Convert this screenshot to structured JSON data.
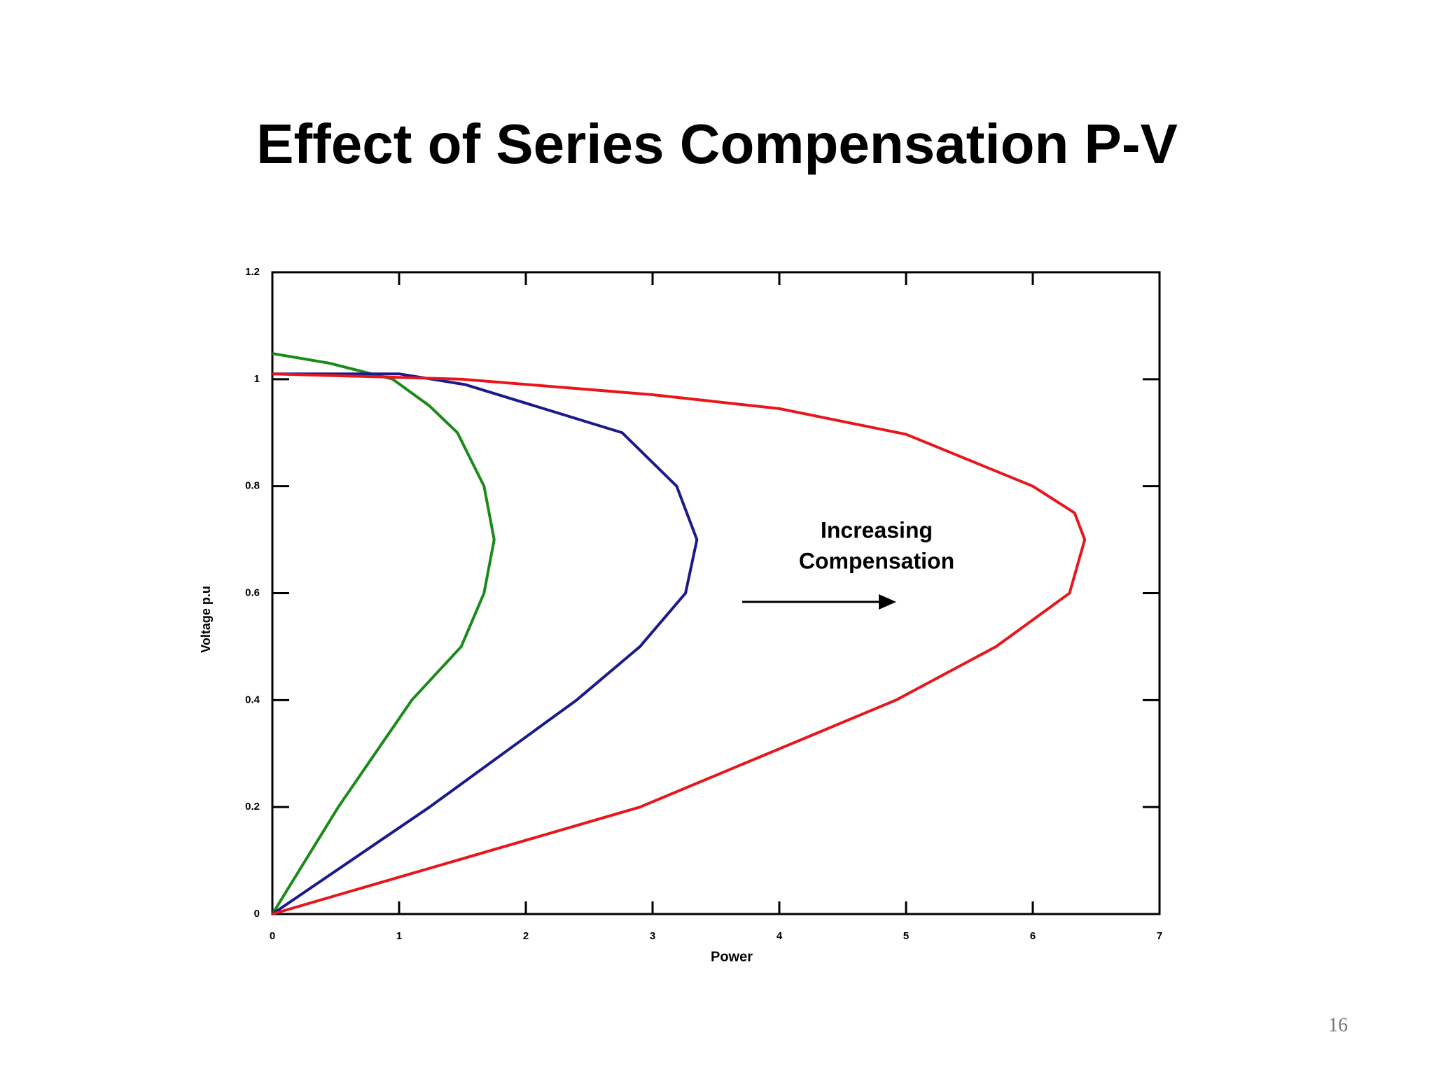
{
  "chart_data": {
    "type": "line",
    "title": "Effect of Series Compensation P-V",
    "x_label": "Power",
    "y_label": "Voltage p.u",
    "annotation": [
      "Increasing",
      "Compensation"
    ],
    "xlim": [
      0,
      7
    ],
    "ylim": [
      0,
      1.2
    ],
    "xticks": [
      0,
      1,
      2,
      3,
      4,
      5,
      6,
      7
    ],
    "yticks": [
      0,
      0.2,
      0.4,
      0.6,
      0.8,
      1,
      1.2
    ],
    "grid": false,
    "series": [
      {
        "color": "#1a8a1a",
        "x": [
          0,
          0.52,
          1.1,
          1.49,
          1.67,
          1.75,
          1.67,
          1.46,
          1.24,
          0.95,
          0.45,
          0
        ],
        "values": [
          0,
          0.2,
          0.4,
          0.5,
          0.6,
          0.7,
          0.8,
          0.9,
          0.95,
          1.0,
          1.03,
          1.048
        ]
      },
      {
        "color": "#1a1a8c",
        "x": [
          0,
          1.24,
          2.4,
          2.9,
          3.26,
          3.35,
          3.19,
          2.76,
          1.52,
          1,
          0
        ],
        "values": [
          0,
          0.2,
          0.4,
          0.5,
          0.6,
          0.7,
          0.8,
          0.9,
          0.99,
          1.01,
          1.01
        ]
      },
      {
        "color": "#e8161c",
        "x": [
          0,
          2.9,
          3.91,
          4.92,
          5.71,
          6.29,
          6.41,
          6.33,
          6.0,
          5,
          4,
          3,
          1.5,
          0
        ],
        "values": [
          0,
          0.2,
          0.3,
          0.4,
          0.5,
          0.6,
          0.7,
          0.75,
          0.8,
          0.897,
          0.945,
          0.971,
          1.0,
          1.01
        ]
      }
    ]
  },
  "page_number": "16"
}
